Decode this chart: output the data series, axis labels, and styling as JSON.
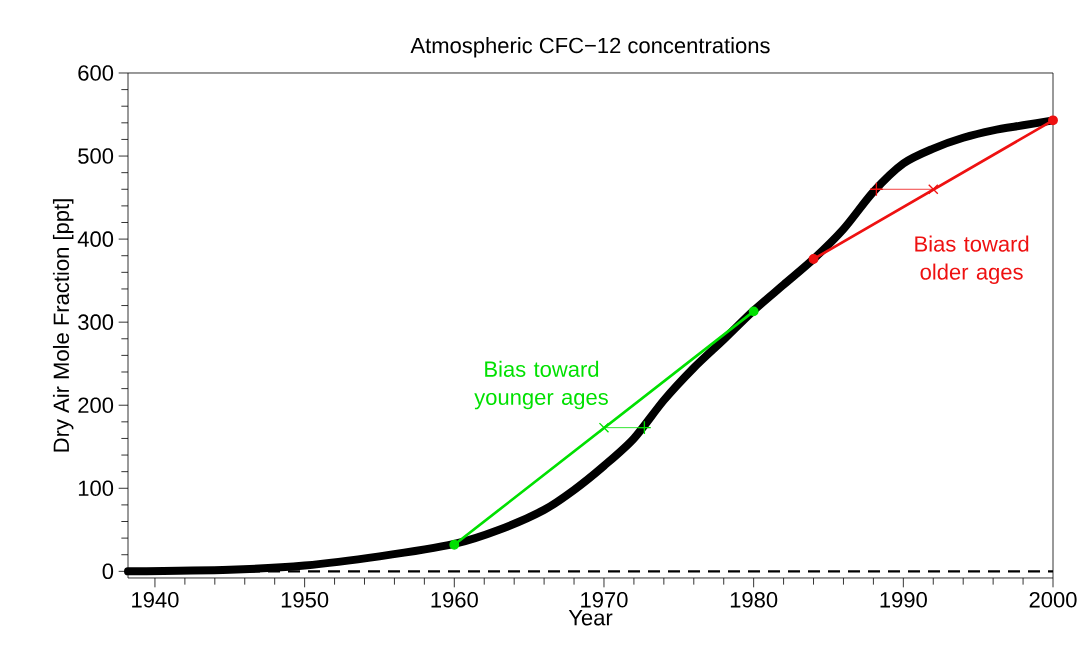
{
  "chart_data": {
    "type": "line",
    "title": "Atmospheric CFC−12 concentrations",
    "xlabel": "Year",
    "ylabel": "Dry Air Mole Fraction  [ppt]",
    "xlim": [
      1938.2,
      2000
    ],
    "xticks": [
      1940,
      1950,
      1960,
      1970,
      1980,
      1990,
      2000
    ],
    "ylim": [
      -8,
      600
    ],
    "yticks": [
      0,
      100,
      200,
      300,
      400,
      500,
      600
    ],
    "marker": "none",
    "line_style": "solid",
    "grid": false,
    "series": [
      {
        "color": "#000000",
        "x": [
          1938.2,
          1945,
          1950,
          1955,
          1960,
          1963,
          1966,
          1968,
          1970,
          1972,
          1974,
          1976,
          1978,
          1980,
          1982,
          1984,
          1986,
          1988,
          1990,
          1992,
          1994,
          1996,
          1998,
          2000
        ],
        "values": [
          0,
          2,
          7,
          18,
          33,
          50,
          74,
          98,
          127,
          160,
          206,
          245,
          279,
          314,
          345,
          376,
          412,
          457,
          491,
          509,
          522,
          531,
          537,
          543
        ]
      },
      {
        "color": "#00e000",
        "marker": "circle",
        "x": [
          1960,
          1980
        ],
        "values": [
          32,
          313
        ]
      },
      {
        "color": "#ee1111",
        "marker": "circle",
        "x": [
          1984,
          2000
        ],
        "values": [
          376,
          543
        ]
      },
      {
        "color": "#00e000",
        "x": [
          1970,
          1972.7
        ],
        "values": [
          173,
          173
        ]
      },
      {
        "color": "#ee1111",
        "x": [
          1988.2,
          1992
        ],
        "values": [
          460,
          460
        ]
      },
      {
        "type": "scatter",
        "color": "#00e000",
        "marker": "cross",
        "x": [
          1970
        ],
        "values": [
          173
        ]
      },
      {
        "type": "scatter",
        "color": "#00e000",
        "marker": "plus",
        "x": [
          1972.7
        ],
        "values": [
          173
        ]
      },
      {
        "type": "scatter",
        "color": "#ee1111",
        "marker": "plus",
        "x": [
          1988.2
        ],
        "values": [
          460
        ]
      },
      {
        "type": "scatter",
        "color": "#ee1111",
        "marker": "cross",
        "x": [
          1992
        ],
        "values": [
          460
        ]
      }
    ],
    "ref_lines": [
      {
        "axis": "y",
        "value": 0,
        "line_style": "dashed",
        "color": "#000000"
      }
    ],
    "annotations": [
      "Bias toward younger ages",
      "Bias toward older ages"
    ]
  }
}
